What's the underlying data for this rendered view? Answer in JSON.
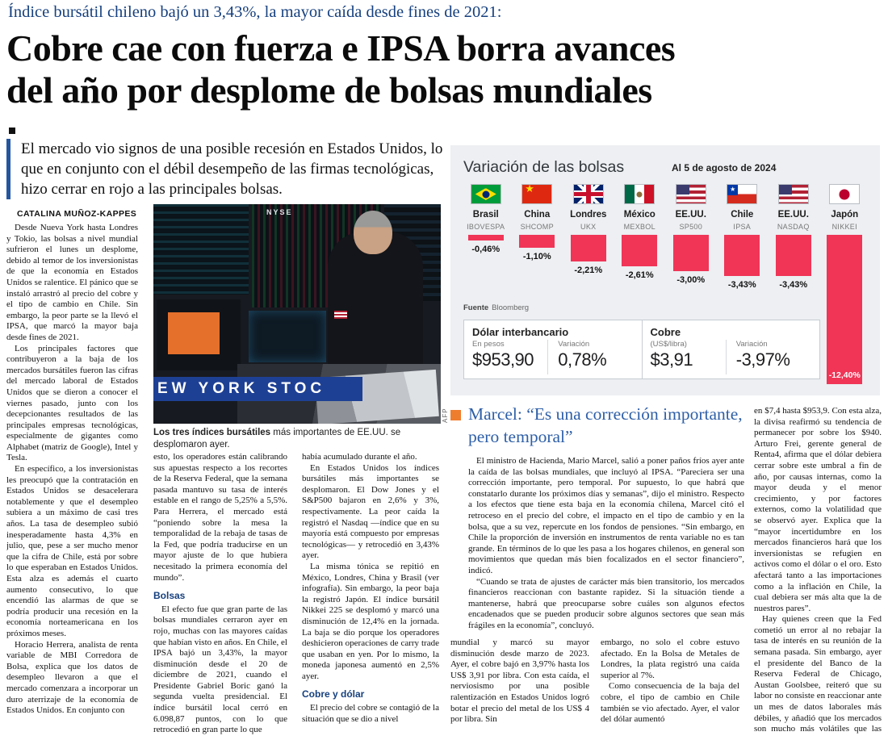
{
  "kicker": "Índice bursátil chileno bajó un 3,43%, la mayor caída desde fines de 2021:",
  "headline": {
    "line1": "Cobre cae con fuerza e IPSA borra avances",
    "line2": "del año por desplome de bolsas mundiales"
  },
  "lede": "El mercado vio signos de una posible recesión en Estados Unidos, lo que en conjunto con el débil desempeño de las firmas tecnológicas, hizo cerrar en rojo a las principales bolsas.",
  "byline": "CATALINA MUÑOZ-KAPPES",
  "photo": {
    "banner_text": "EW YORK STOC",
    "nyse_label": "NYSE",
    "caption_bold": "Los tres índices bursátiles",
    "caption_rest": " más importantes de EE.UU. se desplomaron ayer.",
    "credit": "AFP"
  },
  "columns": {
    "col1": "Desde Nueva York hasta Londres y Tokio, las bolsas a nivel mundial sufrieron el lunes un desplome, debido al temor de los inversionistas de que la economía en Estados Unidos se ralentice. El pánico que se instaló arrastró al precio del cobre y el tipo de cambio en Chile. Sin embargo, la peor parte se la llevó el IPSA, que marcó la mayor baja desde fines de 2021.\nLos principales factores que contribuyeron a la baja de los mercados bursátiles fueron las cifras del mercado laboral de Estados Unidos que se dieron a conocer el viernes pasado, junto con los decepcionantes resultados de las principales empresas tecnológicas, especialmente de gigantes como Alphabet (matriz de Google), Intel y Tesla.\nEn específico, a los inversionistas les preocupó que la contratación en Estados Unidos se desacelerara notablemente y que el desempleo subiera a un máximo de casi tres años. La tasa de desempleo subió inesperadamente hasta 4,3% en julio, que, pese a ser mucho menor que la cifra de Chile, está por sobre lo que esperaban en Estados Unidos. Esta alza es además el cuarto aumento consecutivo, lo que encendió las alarmas de que se podría producir una recesión en la economía norteamericana en los próximos meses.\nHoracio Herrera, analista de renta variable de MBI Corredora de Bolsa, explica que los datos de desempleo llevaron a que el mercado comenzara a incorporar un duro aterrizaje de la economía de Estados Unidos. En conjunto con",
    "col2a": "esto, los operadores están calibrando sus apuestas respecto a los recortes de la Reserva Federal, que la semana pasada mantuvo su tasa de interés estable en el rango de 5,25% a 5,5%. Para Herrera, el mercado está “poniendo sobre la mesa la temporalidad de la rebaja de tasas de la Fed, que podría traducirse en un mayor ajuste de lo que hubiera necesitado la primera economía del mundo”.",
    "col2_subhead": "Bolsas",
    "col2b": "El efecto fue que gran parte de las bolsas mundiales cerraron ayer en rojo, muchas con las mayores caídas que habían visto en años. En Chile, el IPSA bajó un 3,43%, la mayor disminución desde el 20 de diciembre de 2021, cuando el Presidente Gabriel Boric ganó la segunda vuelta presidencial. El índice bursátil local cerró en 6.098,87 puntos, con lo que retrocedió en gran parte lo que",
    "col3a": "había acumulado durante el año.\nEn Estados Unidos los índices bursátiles más importantes se desplomaron. El Dow Jones y el S&P500 bajaron en 2,6% y 3%, respectivamente. La peor caída la registró el Nasdaq —índice que en su mayoría está compuesto por empresas tecnológicas— y retrocedió en 3,43% ayer.\nLa misma tónica se repitió en México, Londres, China y Brasil (ver infografía). Sin embargo, la peor baja la registró Japón. El índice bursátil Nikkei 225 se desplomó y marcó una disminución de 12,4% en la jornada. La baja se dio porque los operadores deshicieron operaciones de carry trade que usaban en yen. Por lo mismo, la moneda japonesa aumentó en 2,5% ayer.",
    "col3_subhead": "Cobre y dólar",
    "col3b": "El precio del cobre se contagió de la situación que se dio a nivel",
    "col4": "mundial y marcó su mayor disminución desde marzo de 2023. Ayer, el cobre bajó en 3,97% hasta los US$ 3,91 por libra. Con esta caída, el nerviosismo por una posible ralentización en Estados Unidos logró botar el precio del metal de los US$ 4 por libra. Sin",
    "col5": "embargo, no solo el cobre estuvo afectado. En la Bolsa de Metales de Londres, la plata registró una caída superior al 7%.\nComo consecuencia de la baja del cobre, el tipo de cambio en Chile también se vio afectado. Ayer, el valor del dólar aumentó",
    "col6": "en $7,4 hasta $953,9. Con esta alza, la divisa reafirmó su tendencia de permanecer por sobre los $940. Arturo Frei, gerente general de Renta4, afirma que el dólar debiera cerrar sobre este umbral a fin de año, por causas internas, como la mayor deuda y el menor crecimiento, y por factores externos, como la volatilidad que se observó ayer. Explica que la “mayor incertidumbre en los mercados financieros hará que los inversionistas se refugien en activos como el dólar o el oro. Esto afectará tanto a las importaciones como a la inflación en Chile, la cual debiera ser más alta que la de nuestros pares”.\nHay quienes creen que la Fed cometió un error al no rebajar la tasa de interés en su reunión de la semana pasada. Sin embargo, ayer el presidente del Banco de la Reserva Federal de Chicago, Austan Goolsbee, reiteró que su labor no consiste en reaccionar ante un mes de datos laborales más débiles, y añadió que los mercados son mucho más volátiles que las acciones de la Fed."
  },
  "marcel": {
    "title": "Marcel: “Es una corrección importante, pero temporal”",
    "body": "El ministro de Hacienda, Mario Marcel, salió a poner paños fríos ayer ante la caída de las bolsas mundiales, que incluyó al IPSA. “Pareciera ser una corrección importante, pero temporal. Por supuesto, lo que habrá que constatarlo durante los próximos días y semanas”, dijo el ministro. Respecto a los efectos que tiene esta baja en la economía chilena, Marcel citó el retroceso en el precio del cobre, el impacto en el tipo de cambio y en la bolsa, que a su vez, repercute en los fondos de pensiones. “Sin embargo, en Chile la proporción de inversión en instrumentos de renta variable no es tan grande. En términos de lo que les pasa a los hogares chilenos, en general son movimientos que quedan más bien focalizados en el sector financiero”, indicó.\n“Cuando se trata de ajustes de carácter más bien transitorio, los mercados financieros reaccionan con bastante rapidez. Si la situación tiende a mantenerse, habrá que preocuparse sobre cuáles son algunos efectos encadenados que se pueden producir sobre algunos sectores que sean más frágiles en la economía”, concluyó."
  },
  "chart_data": {
    "type": "bar",
    "title": "Variación de las bolsas",
    "date_label": "Al 5 de agosto de 2024",
    "source_label": "Fuente",
    "source": "Bloomberg",
    "bar_color": "#f03557",
    "panel_bg": "#edeff2",
    "ylim": [
      -12.4,
      0
    ],
    "categories": [
      {
        "country": "Brasil",
        "index": "IBOVESPA",
        "value": -0.46,
        "label": "-0,46%",
        "flag": "br"
      },
      {
        "country": "China",
        "index": "SHCOMP",
        "value": -1.1,
        "label": "-1,10%",
        "flag": "cn"
      },
      {
        "country": "Londres",
        "index": "UKX",
        "value": -2.21,
        "label": "-2,21%",
        "flag": "uk"
      },
      {
        "country": "México",
        "index": "MEXBOL",
        "value": -2.61,
        "label": "-2,61%",
        "flag": "mx"
      },
      {
        "country": "EE.UU.",
        "index": "SP500",
        "value": -3.0,
        "label": "-3,00%",
        "flag": "us"
      },
      {
        "country": "Chile",
        "index": "IPSA",
        "value": -3.43,
        "label": "-3,43%",
        "flag": "cl"
      },
      {
        "country": "EE.UU.",
        "index": "NASDAQ",
        "value": -3.43,
        "label": "-3,43%",
        "flag": "us"
      },
      {
        "country": "Japón",
        "index": "NIKKEI",
        "value": -12.4,
        "label": "-12,40%",
        "flag": "jp"
      }
    ]
  },
  "stats": {
    "dollar": {
      "title": "Dólar interbancario",
      "col1_label": "En pesos",
      "col1_value": "$953,90",
      "col2_label": "Variación",
      "col2_value": "0,78%"
    },
    "copper": {
      "title": "Cobre",
      "col1_label": "(US$/libra)",
      "col1_value": "$3,91",
      "col2_label": "Variación",
      "col2_value": "-3,97%"
    }
  },
  "colors": {
    "kicker_blue": "#16407e",
    "accent_blue": "#2456a0",
    "marcel_blue": "#2e5fa7",
    "bullet_orange": "#ef7d2e",
    "bar_red": "#f03557",
    "banner_blue": "#1e4094"
  }
}
